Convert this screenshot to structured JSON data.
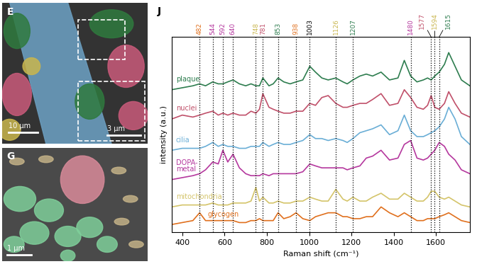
{
  "panels": [
    {
      "label": "E",
      "scale_bars": [
        "10 μm",
        "3 μm"
      ]
    },
    {
      "label": "G",
      "scale_bars": [
        "1 μm"
      ]
    }
  ],
  "chart_data": {
    "type": "line",
    "panel_label": "J",
    "xlabel": "Raman shift (cm⁻¹)",
    "ylabel": "intensity (a.u.)",
    "tick_labels": "x",
    "xlim": [
      350,
      1760
    ],
    "ylim": [
      0,
      10
    ],
    "xticks": [
      400,
      600,
      800,
      1000,
      1200,
      1400,
      1600
    ],
    "x": [
      350,
      400,
      450,
      482,
      510,
      544,
      570,
      592,
      615,
      640,
      670,
      700,
      725,
      748,
      765,
      781,
      810,
      830,
      853,
      880,
      910,
      938,
      970,
      1003,
      1030,
      1060,
      1090,
      1126,
      1160,
      1180,
      1207,
      1240,
      1270,
      1300,
      1340,
      1380,
      1420,
      1450,
      1480,
      1510,
      1540,
      1560,
      1577,
      1594,
      1615,
      1640,
      1660,
      1690,
      1720,
      1760
    ],
    "series": [
      {
        "name": "plaque",
        "color": "#2e7d4f",
        "values": [
          7.3,
          7.4,
          7.5,
          7.6,
          7.5,
          7.7,
          7.6,
          7.6,
          7.7,
          7.8,
          7.6,
          7.5,
          7.6,
          7.5,
          7.5,
          7.9,
          7.5,
          7.6,
          7.9,
          7.7,
          7.6,
          7.7,
          7.8,
          8.5,
          8.2,
          7.9,
          7.8,
          7.9,
          7.7,
          7.6,
          7.8,
          8.0,
          8.1,
          8.0,
          8.2,
          7.8,
          7.9,
          8.8,
          8.0,
          7.7,
          7.8,
          7.9,
          7.8,
          8.0,
          8.2,
          8.6,
          9.2,
          8.5,
          7.8,
          7.5
        ]
      },
      {
        "name": "nuclei",
        "color": "#c0506a",
        "values": [
          5.8,
          6.0,
          5.9,
          6.0,
          6.1,
          6.2,
          6.0,
          6.1,
          6.0,
          6.1,
          6.0,
          6.0,
          6.2,
          6.1,
          6.3,
          7.1,
          6.4,
          6.3,
          6.2,
          6.1,
          6.1,
          6.2,
          6.2,
          6.6,
          6.5,
          6.9,
          7.0,
          6.6,
          6.4,
          6.4,
          6.5,
          6.6,
          6.6,
          6.8,
          7.1,
          6.5,
          6.6,
          7.3,
          6.9,
          6.4,
          6.3,
          6.5,
          7.0,
          6.4,
          6.3,
          6.6,
          7.2,
          6.6,
          6.1,
          5.9
        ]
      },
      {
        "name": "cilia",
        "color": "#6aaed6",
        "values": [
          4.2,
          4.3,
          4.3,
          4.3,
          4.4,
          4.6,
          4.4,
          4.5,
          4.4,
          4.4,
          4.3,
          4.3,
          4.4,
          4.4,
          4.4,
          4.6,
          4.4,
          4.5,
          4.6,
          4.5,
          4.5,
          4.6,
          4.7,
          5.0,
          4.8,
          4.8,
          4.7,
          4.8,
          4.7,
          4.6,
          4.8,
          5.1,
          5.2,
          5.3,
          5.5,
          5.0,
          5.2,
          6.0,
          5.2,
          4.9,
          4.9,
          5.0,
          5.1,
          5.2,
          5.4,
          5.8,
          6.4,
          5.8,
          4.9,
          4.5
        ]
      },
      {
        "name": "DOPA-\nmetal",
        "color": "#b5389e",
        "values": [
          2.7,
          2.8,
          2.9,
          3.0,
          3.2,
          3.6,
          3.5,
          4.2,
          3.6,
          4.0,
          3.3,
          3.0,
          2.9,
          2.9,
          2.9,
          3.0,
          2.9,
          3.0,
          3.0,
          3.0,
          3.0,
          3.0,
          3.1,
          3.5,
          3.4,
          3.3,
          3.3,
          3.3,
          3.3,
          3.2,
          3.3,
          3.4,
          3.8,
          3.9,
          4.2,
          3.7,
          3.8,
          4.5,
          4.7,
          3.8,
          3.7,
          3.8,
          4.0,
          4.2,
          4.6,
          4.4,
          4.0,
          3.7,
          3.2,
          3.0
        ]
      },
      {
        "name": "mitochondria",
        "color": "#d4c46a",
        "values": [
          1.3,
          1.4,
          1.4,
          1.4,
          1.4,
          1.5,
          1.4,
          1.4,
          1.4,
          1.5,
          1.5,
          1.5,
          1.6,
          2.3,
          1.6,
          1.8,
          1.5,
          1.5,
          1.6,
          1.5,
          1.5,
          1.6,
          1.6,
          1.8,
          1.7,
          1.6,
          1.6,
          2.2,
          1.7,
          1.6,
          1.8,
          1.6,
          1.6,
          1.8,
          2.0,
          1.7,
          1.7,
          2.0,
          1.8,
          1.6,
          1.6,
          1.8,
          2.1,
          2.1,
          1.8,
          1.7,
          1.8,
          1.6,
          1.4,
          1.3
        ]
      },
      {
        "name": "glycogen",
        "color": "#e0701e",
        "values": [
          0.4,
          0.5,
          0.6,
          1.0,
          0.6,
          0.6,
          0.6,
          0.6,
          0.6,
          0.6,
          0.5,
          0.5,
          0.6,
          0.6,
          0.7,
          0.6,
          0.6,
          0.6,
          1.0,
          0.7,
          0.8,
          1.0,
          0.7,
          0.6,
          0.8,
          0.9,
          1.0,
          1.0,
          0.8,
          0.8,
          0.7,
          0.7,
          0.8,
          0.8,
          1.3,
          1.0,
          0.8,
          1.0,
          0.8,
          0.6,
          0.6,
          0.7,
          0.7,
          0.7,
          0.8,
          0.9,
          1.0,
          0.8,
          0.6,
          0.5
        ]
      }
    ],
    "peaks": [
      {
        "value": 482,
        "color": "#e0701e"
      },
      {
        "value": 544,
        "color": "#b5389e"
      },
      {
        "value": 592,
        "color": "#b5389e"
      },
      {
        "value": 640,
        "color": "#b5389e"
      },
      {
        "value": 748,
        "color": "#c9b64e"
      },
      {
        "value": 781,
        "color": "#c0506a"
      },
      {
        "value": 853,
        "color": "#2e7d4f"
      },
      {
        "value": 938,
        "color": "#e0701e"
      },
      {
        "value": 1003,
        "color": "#000000"
      },
      {
        "value": 1126,
        "color": "#c9b64e"
      },
      {
        "value": 1207,
        "color": "#2e7d4f"
      },
      {
        "value": 1480,
        "color": "#b5389e"
      },
      {
        "value": 1577,
        "color": "#c0506a"
      },
      {
        "value": 1594,
        "color": "#c9b64e"
      },
      {
        "value": 1615,
        "color": "#2e7d4f"
      }
    ]
  }
}
